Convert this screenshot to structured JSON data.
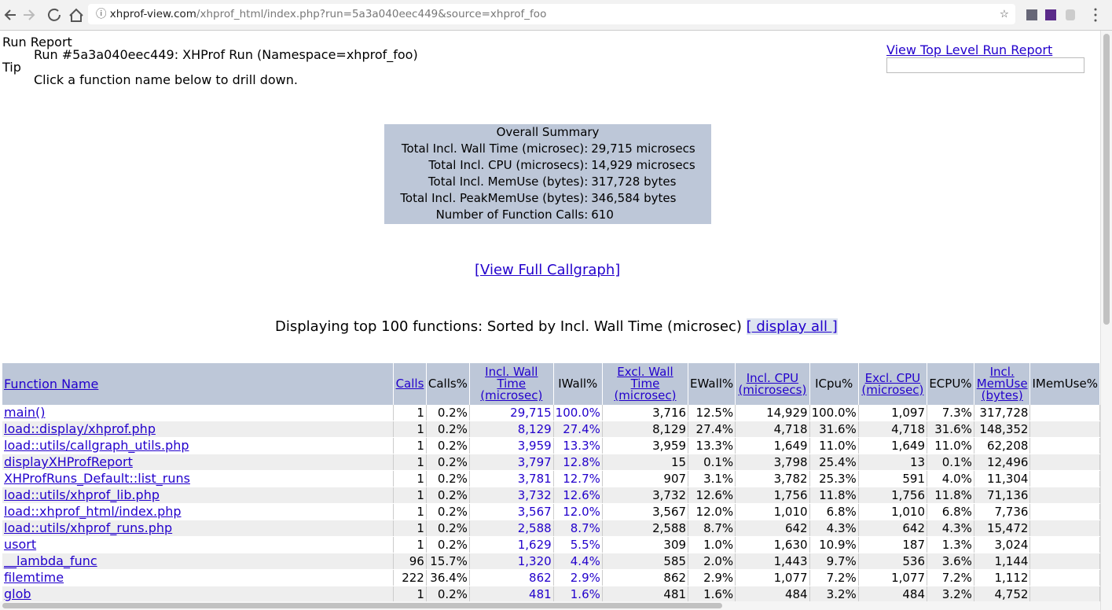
{
  "browser": {
    "url_host": "xhprof-view.com",
    "url_path": "/xhprof_html/index.php?run=5a3a040eec449&source=xhprof_foo"
  },
  "header": {
    "title": "Run Report",
    "run": "Run #5a3a040eec449: XHProf Run (Namespace=xhprof_foo)",
    "tip_label": "Tip",
    "tip": "Click a function name below to drill down.",
    "top_link": "View Top Level Run Report"
  },
  "summary": {
    "title": "Overall Summary",
    "rows": [
      [
        "Total Incl. Wall Time (microsec):",
        "29,715 microsecs"
      ],
      [
        "Total Incl. CPU (microsecs):",
        "14,929 microsecs"
      ],
      [
        "Total Incl. MemUse (bytes):",
        "317,728 bytes"
      ],
      [
        "Total Incl. PeakMemUse (bytes):",
        "346,584 bytes"
      ],
      [
        "Number of Function Calls:",
        "610"
      ]
    ]
  },
  "callgraph_link": "[View Full Callgraph]",
  "display": {
    "text": "Displaying top 100 functions: Sorted by Incl. Wall Time (microsec)",
    "link": "[ display all ]"
  },
  "table": {
    "columns": [
      "Function Name",
      "Calls",
      "Calls%",
      "Incl. Wall Time (microsec)",
      "IWall%",
      "Excl. Wall Time (microsec)",
      "EWall%",
      "Incl. CPU (microsecs)",
      "ICpu%",
      "Excl. CPU (microsec)",
      "ECPU%",
      "Incl. MemUse (bytes)",
      "IMemUse%"
    ],
    "rows": [
      [
        "main()",
        "1",
        "0.2%",
        "29,715",
        "100.0%",
        "3,716",
        "12.5%",
        "14,929",
        "100.0%",
        "1,097",
        "7.3%",
        "317,728"
      ],
      [
        "load::display/xhprof.php",
        "1",
        "0.2%",
        "8,129",
        "27.4%",
        "8,129",
        "27.4%",
        "4,718",
        "31.6%",
        "4,718",
        "31.6%",
        "148,352"
      ],
      [
        "load::utils/callgraph_utils.php",
        "1",
        "0.2%",
        "3,959",
        "13.3%",
        "3,959",
        "13.3%",
        "1,649",
        "11.0%",
        "1,649",
        "11.0%",
        "62,208"
      ],
      [
        "displayXHProfReport",
        "1",
        "0.2%",
        "3,797",
        "12.8%",
        "15",
        "0.1%",
        "3,798",
        "25.4%",
        "13",
        "0.1%",
        "12,496"
      ],
      [
        "XHProfRuns_Default::list_runs",
        "1",
        "0.2%",
        "3,781",
        "12.7%",
        "907",
        "3.1%",
        "3,782",
        "25.3%",
        "591",
        "4.0%",
        "11,304"
      ],
      [
        "load::utils/xhprof_lib.php",
        "1",
        "0.2%",
        "3,732",
        "12.6%",
        "3,732",
        "12.6%",
        "1,756",
        "11.8%",
        "1,756",
        "11.8%",
        "71,136"
      ],
      [
        "load::xhprof_html/index.php",
        "1",
        "0.2%",
        "3,567",
        "12.0%",
        "3,567",
        "12.0%",
        "1,010",
        "6.8%",
        "1,010",
        "6.8%",
        "7,736"
      ],
      [
        "load::utils/xhprof_runs.php",
        "1",
        "0.2%",
        "2,588",
        "8.7%",
        "2,588",
        "8.7%",
        "642",
        "4.3%",
        "642",
        "4.3%",
        "15,472"
      ],
      [
        "usort",
        "1",
        "0.2%",
        "1,629",
        "5.5%",
        "309",
        "1.0%",
        "1,630",
        "10.9%",
        "187",
        "1.3%",
        "3,024"
      ],
      [
        "__lambda_func",
        "96",
        "15.7%",
        "1,320",
        "4.4%",
        "585",
        "2.0%",
        "1,443",
        "9.7%",
        "536",
        "3.6%",
        "1,144"
      ],
      [
        "filemtime",
        "222",
        "36.4%",
        "862",
        "2.9%",
        "862",
        "2.9%",
        "1,077",
        "7.2%",
        "1,077",
        "7.2%",
        "1,112"
      ],
      [
        "glob",
        "1",
        "0.2%",
        "481",
        "1.6%",
        "481",
        "1.6%",
        "484",
        "3.2%",
        "484",
        "3.2%",
        "4,752"
      ]
    ]
  }
}
